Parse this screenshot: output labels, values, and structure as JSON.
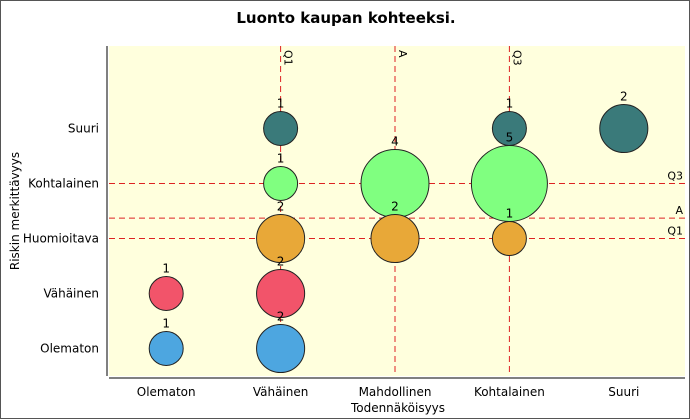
{
  "chart_data": {
    "type": "scatter",
    "subtype": "bubble",
    "title": "Luonto kaupan kohteeksi.",
    "xlabel": "Todennäköisyys",
    "ylabel": "Riskin merkittävyys",
    "x_categories": [
      "Olematon",
      "Vähäinen",
      "Mahdollinen",
      "Kohtalainen",
      "Suuri"
    ],
    "y_categories": [
      "Olematon",
      "Vähäinen",
      "Huomioitava",
      "Kohtalainen",
      "Suuri"
    ],
    "plot_background": "#ffffdd",
    "points": [
      {
        "x": 1,
        "y": 1,
        "count": 1,
        "color": "#4da6e0"
      },
      {
        "x": 1,
        "y": 2,
        "count": 1,
        "color": "#f2546a"
      },
      {
        "x": 2,
        "y": 1,
        "count": 2,
        "color": "#4da6e0"
      },
      {
        "x": 2,
        "y": 2,
        "count": 2,
        "color": "#f2546a"
      },
      {
        "x": 2,
        "y": 3,
        "count": 2,
        "color": "#e8a838"
      },
      {
        "x": 2,
        "y": 4,
        "count": 1,
        "color": "#80ff80"
      },
      {
        "x": 2,
        "y": 5,
        "count": 1,
        "color": "#3a7a7a"
      },
      {
        "x": 3,
        "y": 4,
        "count": 4,
        "color": "#80ff80"
      },
      {
        "x": 3,
        "y": 3,
        "count": 2,
        "color": "#e8a838"
      },
      {
        "x": 4,
        "y": 4,
        "count": 5,
        "color": "#80ff80"
      },
      {
        "x": 4,
        "y": 5,
        "count": 1,
        "color": "#3a7a7a"
      },
      {
        "x": 4,
        "y": 3,
        "count": 1,
        "color": "#e8a838"
      },
      {
        "x": 5,
        "y": 5,
        "count": 2,
        "color": "#3a7a7a"
      }
    ],
    "reference_lines": {
      "vertical": [
        {
          "label": "Q1",
          "x": 2.0
        },
        {
          "label": "A",
          "x": 3.0
        },
        {
          "label": "Q3",
          "x": 4.0
        }
      ],
      "horizontal": [
        {
          "label": "Q3",
          "y": 4.0
        },
        {
          "label": "A",
          "y": 3.37
        },
        {
          "label": "Q1",
          "y": 3.0
        }
      ],
      "color": "#dd2222",
      "style": "dashed"
    }
  }
}
